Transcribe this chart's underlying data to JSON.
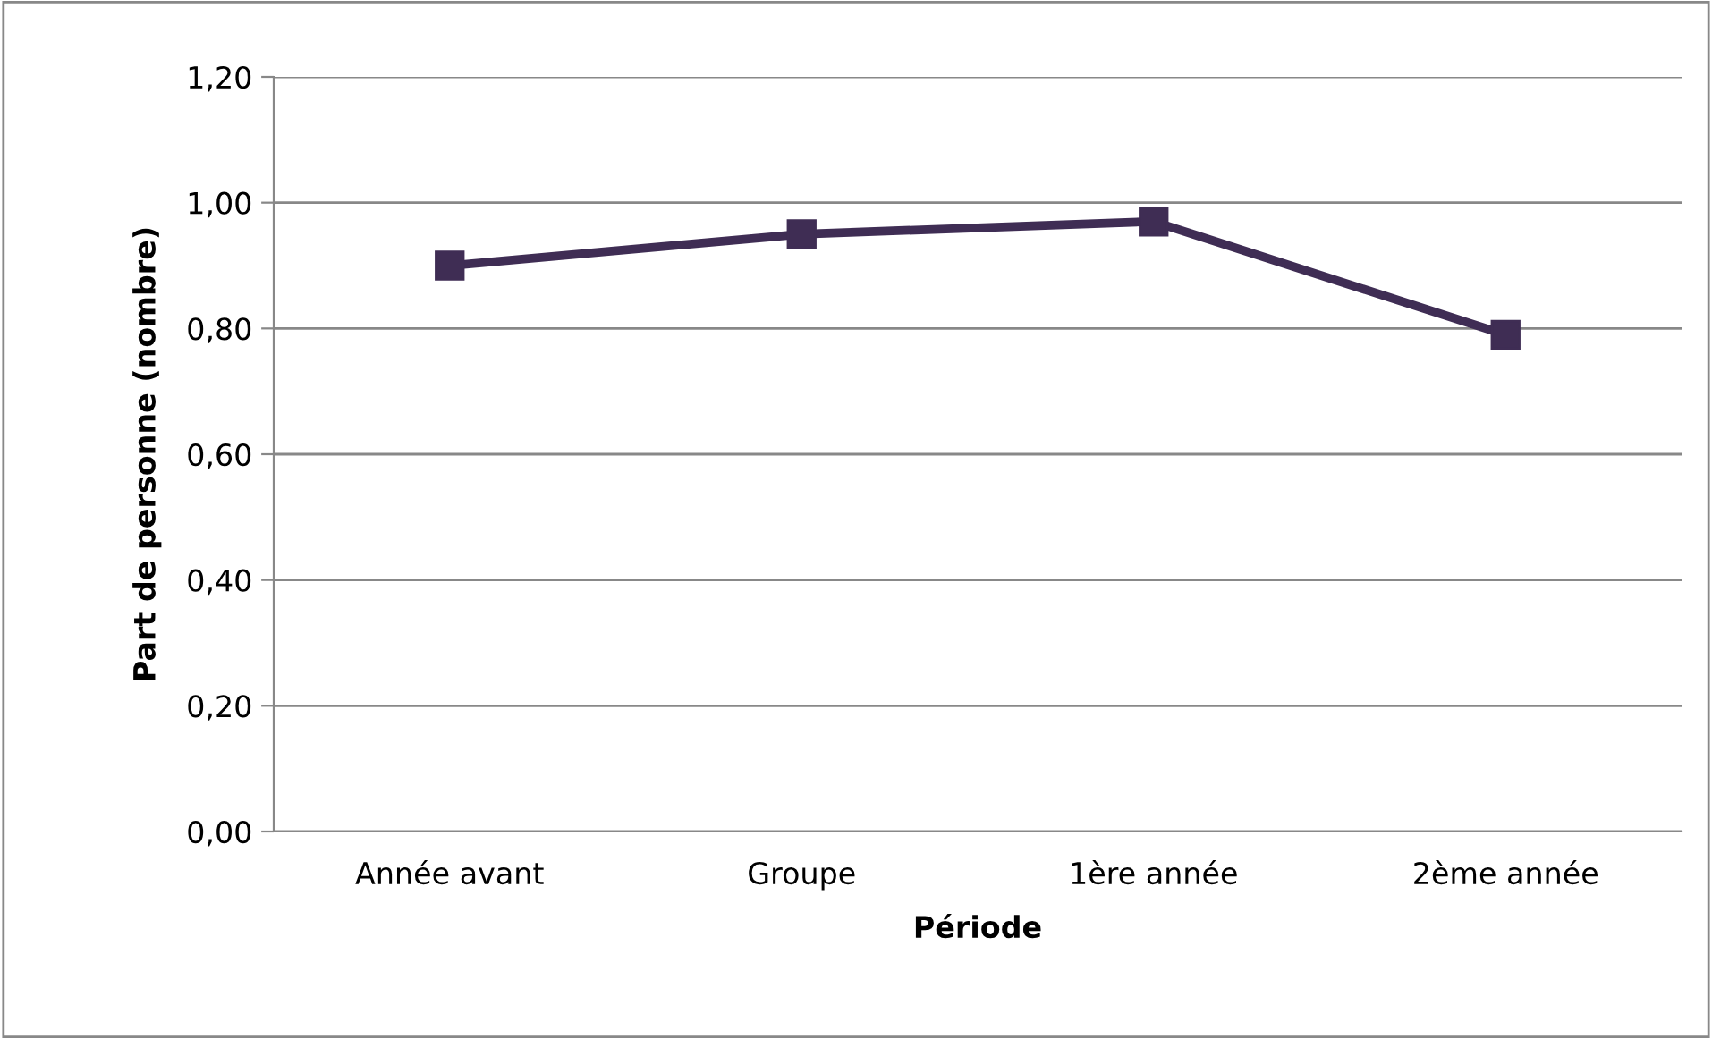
{
  "chart_data": {
    "type": "line",
    "xlabel": "Période",
    "ylabel": "Part de personne (nombre)",
    "categories": [
      "Année avant",
      "Groupe",
      "1ère année",
      "2ème année"
    ],
    "series": [
      {
        "color": "#3f2d54",
        "values": [
          0.9,
          0.95,
          0.97,
          0.79
        ]
      }
    ],
    "ylim": [
      0,
      1.2
    ],
    "yticks": [
      {
        "value": 0,
        "label": "0,00"
      },
      {
        "value": 0.2,
        "label": "0,20"
      },
      {
        "value": 0.4,
        "label": "0,40"
      },
      {
        "value": 0.6,
        "label": "0,60"
      },
      {
        "value": 0.8,
        "label": "0,80"
      },
      {
        "value": 1.0,
        "label": "1,00"
      },
      {
        "value": 1.2,
        "label": "1,20"
      }
    ],
    "grid": "y",
    "marker": "square",
    "line_style": "solid",
    "legend": false
  }
}
